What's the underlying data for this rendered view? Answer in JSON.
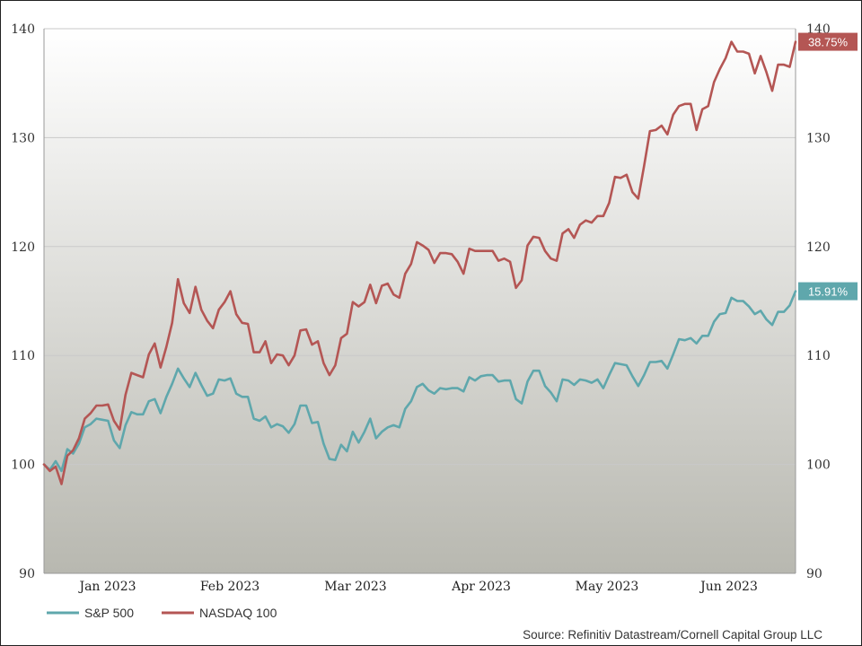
{
  "chart_data": {
    "type": "line",
    "x_labels": [
      "Jan 2023",
      "Feb 2023",
      "Mar 2023",
      "Apr 2023",
      "May 2023",
      "Jun 2023"
    ],
    "ylim": [
      90,
      140
    ],
    "yticks": [
      90,
      100,
      110,
      120,
      130,
      140
    ],
    "legend_position": "bottom-left",
    "grid": true,
    "series": [
      {
        "name": "S&P 500",
        "color": "#5fa7ac",
        "end_label": "15.91%",
        "values": [
          100,
          99.5,
          100.3,
          99.4,
          101.4,
          101.0,
          101.9,
          103.4,
          103.7,
          104.2,
          104.1,
          104.0,
          102.2,
          101.5,
          103.6,
          104.8,
          104.6,
          104.6,
          105.8,
          106.0,
          104.7,
          106.2,
          107.4,
          108.8,
          107.9,
          107.1,
          108.4,
          107.3,
          106.3,
          106.5,
          107.8,
          107.7,
          107.9,
          106.5,
          106.2,
          106.2,
          104.2,
          104.0,
          104.4,
          103.4,
          103.7,
          103.5,
          102.9,
          103.7,
          105.4,
          105.4,
          103.8,
          103.9,
          101.9,
          100.5,
          100.4,
          101.8,
          101.2,
          103.0,
          102.0,
          103.0,
          104.2,
          102.4,
          103.0,
          103.4,
          103.6,
          103.4,
          105.1,
          105.8,
          107.1,
          107.4,
          106.8,
          106.5,
          107.0,
          106.9,
          107.0,
          107.0,
          106.7,
          108.0,
          107.7,
          108.1,
          108.2,
          108.2,
          107.6,
          107.7,
          107.7,
          106.0,
          105.6,
          107.6,
          108.6,
          108.6,
          107.2,
          106.6,
          105.8,
          107.8,
          107.7,
          107.3,
          107.8,
          107.7,
          107.5,
          107.8,
          107.0,
          108.2,
          109.3,
          109.2,
          109.1,
          108.1,
          107.2,
          108.2,
          109.4,
          109.4,
          109.5,
          108.8,
          110.1,
          111.5,
          111.4,
          111.6,
          111.1,
          111.8,
          111.8,
          113.1,
          113.8,
          113.9,
          115.3,
          115.0,
          115.0,
          114.5,
          113.8,
          114.1,
          113.3,
          112.8,
          114.0,
          114.0,
          114.6,
          115.9
        ]
      },
      {
        "name": "NASDAQ 100",
        "color": "#b45654",
        "end_label": "38.75%",
        "values": [
          100,
          99.4,
          99.8,
          98.2,
          100.8,
          101.3,
          102.4,
          104.2,
          104.7,
          105.4,
          105.4,
          105.5,
          104.0,
          103.2,
          106.4,
          108.4,
          108.2,
          108.0,
          110.1,
          111.1,
          108.9,
          110.8,
          113.0,
          117.0,
          114.8,
          113.9,
          116.3,
          114.2,
          113.2,
          112.5,
          114.2,
          114.9,
          115.9,
          113.8,
          113.0,
          112.9,
          110.3,
          110.3,
          111.3,
          109.3,
          110.1,
          110.0,
          109.1,
          110.0,
          112.3,
          112.4,
          111.0,
          111.3,
          109.3,
          108.2,
          109.1,
          111.6,
          112.0,
          114.9,
          114.5,
          114.9,
          116.5,
          114.8,
          116.4,
          116.6,
          115.6,
          115.3,
          117.5,
          118.4,
          120.4,
          120.1,
          119.7,
          118.5,
          119.4,
          119.4,
          119.3,
          118.6,
          117.5,
          119.8,
          119.6,
          119.6,
          119.6,
          119.6,
          118.7,
          118.9,
          118.6,
          116.2,
          116.9,
          120.1,
          120.9,
          120.8,
          119.6,
          118.9,
          118.7,
          121.2,
          121.6,
          120.8,
          122.0,
          122.4,
          122.2,
          122.8,
          122.8,
          124.0,
          126.4,
          126.3,
          126.6,
          125.0,
          124.4,
          127.4,
          130.6,
          130.7,
          131.1,
          130.3,
          132.1,
          132.9,
          133.1,
          133.1,
          130.7,
          132.6,
          132.9,
          135.1,
          136.3,
          137.3,
          138.8,
          137.9,
          137.9,
          137.7,
          135.9,
          137.5,
          136.0,
          134.3,
          136.7,
          136.7,
          136.5,
          138.8
        ]
      }
    ]
  },
  "source": "Source: Refinitiv Datastream/Cornell Capital Group LLC"
}
